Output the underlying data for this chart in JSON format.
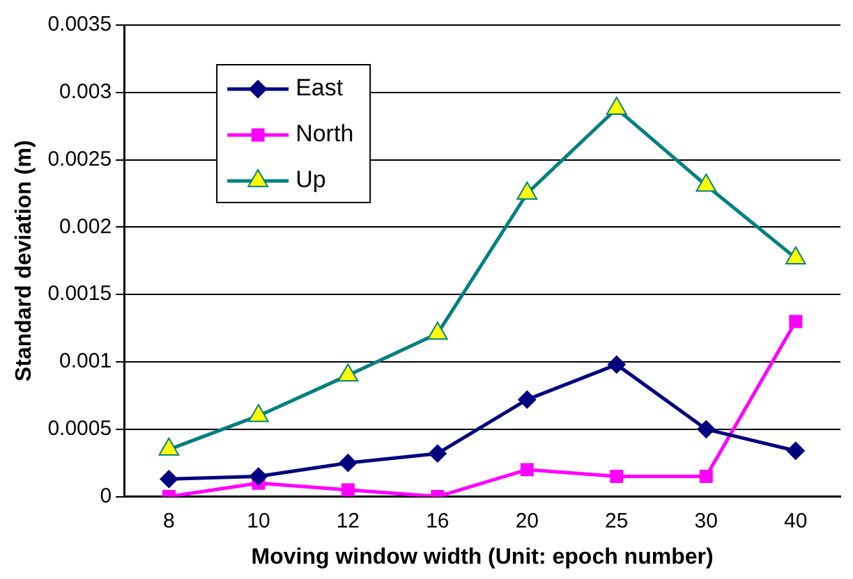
{
  "chart_data": {
    "type": "line",
    "xlabel": "Moving window width (Unit: epoch number)",
    "ylabel": "Standard deviation (m)",
    "categories": [
      "8",
      "10",
      "12",
      "16",
      "20",
      "25",
      "30",
      "40"
    ],
    "series": [
      {
        "name": "East",
        "color": "#000080",
        "marker": "diamond",
        "values": [
          0.00013,
          0.00015,
          0.00025,
          0.00032,
          0.00072,
          0.00098,
          0.0005,
          0.00034
        ]
      },
      {
        "name": "North",
        "color": "#ff00ff",
        "marker": "square",
        "values": [
          0,
          0.0001,
          5e-05,
          0,
          0.0002,
          0.00015,
          0.00015,
          0.0013
        ]
      },
      {
        "name": "Up",
        "color": "#008080",
        "marker": "triangle",
        "values": [
          0.00035,
          0.0006,
          0.0009,
          0.00121,
          0.00225,
          0.00288,
          0.00231,
          0.00177
        ]
      }
    ],
    "ylim": [
      0,
      0.0035
    ],
    "yticks": [
      0,
      0.0005,
      0.001,
      0.0015,
      0.002,
      0.0025,
      0.003,
      0.0035
    ],
    "grid": "y",
    "legend": "top left",
    "line_style": "solid"
  }
}
